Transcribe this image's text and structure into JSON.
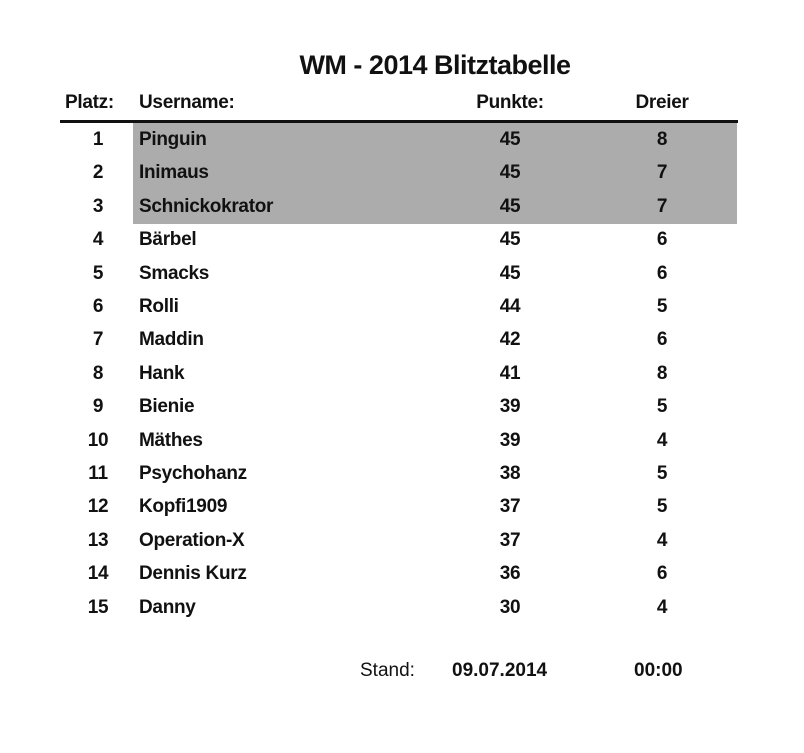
{
  "title": "WM - 2014 Blitztabelle",
  "headers": {
    "platz": "Platz:",
    "username": "Username:",
    "punkte": "Punkte:",
    "dreier": "Dreier"
  },
  "highlight_color": "#acacac",
  "rows": [
    {
      "platz": "1",
      "username": "Pinguin",
      "punkte": "45",
      "dreier": "8"
    },
    {
      "platz": "2",
      "username": "Inimaus",
      "punkte": "45",
      "dreier": "7"
    },
    {
      "platz": "3",
      "username": "Schnickokrator",
      "punkte": "45",
      "dreier": "7"
    },
    {
      "platz": "4",
      "username": "Bärbel",
      "punkte": "45",
      "dreier": "6"
    },
    {
      "platz": "5",
      "username": "Smacks",
      "punkte": "45",
      "dreier": "6"
    },
    {
      "platz": "6",
      "username": "Rolli",
      "punkte": "44",
      "dreier": "5"
    },
    {
      "platz": "7",
      "username": "Maddin",
      "punkte": "42",
      "dreier": "6"
    },
    {
      "platz": "8",
      "username": "Hank",
      "punkte": "41",
      "dreier": "8"
    },
    {
      "platz": "9",
      "username": "Bienie",
      "punkte": "39",
      "dreier": "5"
    },
    {
      "platz": "10",
      "username": "Mäthes",
      "punkte": "39",
      "dreier": "4"
    },
    {
      "platz": "11",
      "username": "Psychohanz",
      "punkte": "38",
      "dreier": "5"
    },
    {
      "platz": "12",
      "username": "Kopfi1909",
      "punkte": "37",
      "dreier": "5"
    },
    {
      "platz": "13",
      "username": "Operation-X",
      "punkte": "37",
      "dreier": "4"
    },
    {
      "platz": "14",
      "username": "Dennis Kurz",
      "punkte": "36",
      "dreier": "6"
    },
    {
      "platz": "15",
      "username": "Danny",
      "punkte": "30",
      "dreier": "4"
    }
  ],
  "footer": {
    "stand_label": "Stand:",
    "date": "09.07.2014",
    "time": "00:00"
  }
}
